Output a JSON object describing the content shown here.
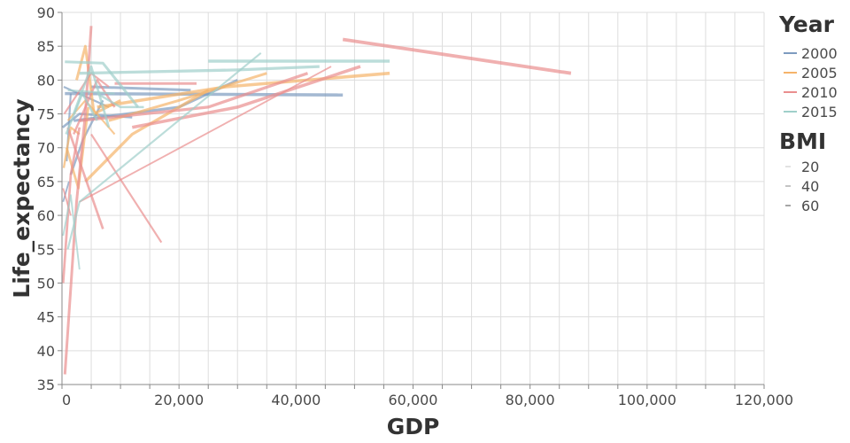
{
  "chart_data": {
    "type": "line",
    "title": "",
    "xlabel": "GDP",
    "ylabel": "Life_expectancy",
    "xlim": [
      0,
      120000
    ],
    "ylim": [
      35,
      90
    ],
    "x_ticks": [
      0,
      20000,
      40000,
      60000,
      80000,
      100000,
      120000
    ],
    "x_tick_labels": [
      "0",
      "20,000",
      "40,000",
      "60,000",
      "80,000",
      "100,000",
      "120,000"
    ],
    "y_ticks": [
      35,
      40,
      45,
      50,
      55,
      60,
      65,
      70,
      75,
      80,
      85,
      90
    ],
    "y_tick_labels": [
      "35",
      "40",
      "45",
      "50",
      "55",
      "60",
      "65",
      "70",
      "75",
      "80",
      "85",
      "90"
    ],
    "grid": true,
    "legend": {
      "placement": "right",
      "color_title": "Year",
      "color_entries": [
        {
          "label": "2000",
          "color": "#7d9bbf"
        },
        {
          "label": "2005",
          "color": "#f5b36a"
        },
        {
          "label": "2010",
          "color": "#ea8f8f"
        },
        {
          "label": "2015",
          "color": "#9fcfca"
        }
      ],
      "size_title": "BMI",
      "size_entries": [
        {
          "label": "20",
          "width": 0.5
        },
        {
          "label": "40",
          "width": 1
        },
        {
          "label": "60",
          "width": 1.5
        }
      ]
    },
    "series": [
      {
        "year": "2000",
        "color": "#7d9bbf",
        "segments": [
          {
            "bmi": 55,
            "points": [
              [
                500,
                78
              ],
              [
                48000,
                77.8
              ]
            ]
          },
          {
            "bmi": 45,
            "points": [
              [
                2000,
                74
              ],
              [
                20000,
                76
              ],
              [
                30000,
                80
              ]
            ]
          },
          {
            "bmi": 40,
            "points": [
              [
                100,
                73
              ],
              [
                3000,
                75
              ],
              [
                12000,
                74.5
              ]
            ]
          },
          {
            "bmi": 35,
            "points": [
              [
                1500,
                66
              ],
              [
                3500,
                71
              ],
              [
                7000,
                77
              ]
            ]
          },
          {
            "bmi": 30,
            "points": [
              [
                800,
                68
              ],
              [
                1500,
                78
              ]
            ]
          },
          {
            "bmi": 30,
            "points": [
              [
                300,
                79
              ],
              [
                8000,
                76
              ]
            ]
          },
          {
            "bmi": 25,
            "points": [
              [
                200,
                62
              ],
              [
                1200,
                65
              ]
            ]
          },
          {
            "bmi": 45,
            "points": [
              [
                5000,
                79
              ],
              [
                22000,
                78.5
              ]
            ]
          }
        ]
      },
      {
        "year": "2005",
        "color": "#f5b36a",
        "segments": [
          {
            "bmi": 55,
            "points": [
              [
                6000,
                76
              ],
              [
                28000,
                79
              ],
              [
                56000,
                81
              ]
            ]
          },
          {
            "bmi": 50,
            "points": [
              [
                4000,
                65
              ],
              [
                12000,
                72
              ],
              [
                25000,
                78.5
              ]
            ]
          },
          {
            "bmi": 45,
            "points": [
              [
                2500,
                80
              ],
              [
                4000,
                85
              ],
              [
                5500,
                75
              ],
              [
                10000,
                77
              ]
            ]
          },
          {
            "bmi": 40,
            "points": [
              [
                800,
                70
              ],
              [
                2800,
                64
              ],
              [
                4500,
                76
              ]
            ]
          },
          {
            "bmi": 45,
            "points": [
              [
                8000,
                74
              ],
              [
                20000,
                77
              ],
              [
                35000,
                81
              ]
            ]
          },
          {
            "bmi": 35,
            "points": [
              [
                300,
                67
              ],
              [
                1500,
                73
              ],
              [
                3000,
                72
              ]
            ]
          },
          {
            "bmi": 30,
            "points": [
              [
                1000,
                74
              ],
              [
                4000,
                77
              ],
              [
                9000,
                72
              ]
            ]
          }
        ]
      },
      {
        "year": "2010",
        "color": "#ea8f8f",
        "segments": [
          {
            "bmi": 60,
            "points": [
              [
                48000,
                86
              ],
              [
                87000,
                81
              ]
            ]
          },
          {
            "bmi": 55,
            "points": [
              [
                12000,
                73
              ],
              [
                30000,
                76
              ],
              [
                51000,
                82
              ]
            ]
          },
          {
            "bmi": 45,
            "points": [
              [
                500,
                36.5
              ],
              [
                2500,
                62
              ],
              [
                4000,
                75
              ],
              [
                5000,
                88
              ]
            ]
          },
          {
            "bmi": 40,
            "points": [
              [
                1000,
                73
              ],
              [
                7000,
                58
              ]
            ]
          },
          {
            "bmi": 40,
            "points": [
              [
                200,
                50
              ],
              [
                1500,
                66
              ],
              [
                3000,
                73
              ]
            ]
          },
          {
            "bmi": 35,
            "points": [
              [
                2000,
                72
              ],
              [
                6000,
                80
              ],
              [
                9000,
                76
              ]
            ]
          },
          {
            "bmi": 30,
            "points": [
              [
                5000,
                72
              ],
              [
                17000,
                56
              ]
            ]
          },
          {
            "bmi": 50,
            "points": [
              [
                3000,
                74
              ],
              [
                25000,
                76
              ],
              [
                42000,
                81
              ]
            ]
          },
          {
            "bmi": 45,
            "points": [
              [
                9000,
                79.5
              ],
              [
                23000,
                79.5
              ]
            ]
          },
          {
            "bmi": 25,
            "points": [
              [
                200,
                64
              ],
              [
                1500,
                60
              ]
            ]
          },
          {
            "bmi": 30,
            "points": [
              [
                400,
                75
              ],
              [
                5000,
                81
              ],
              [
                8000,
                79
              ]
            ]
          },
          {
            "bmi": 25,
            "points": [
              [
                3000,
                62
              ],
              [
                46000,
                82
              ]
            ]
          }
        ]
      },
      {
        "year": "2015",
        "color": "#9fcfca",
        "segments": [
          {
            "bmi": 55,
            "points": [
              [
                25000,
                82.8
              ],
              [
                56000,
                82.8
              ]
            ]
          },
          {
            "bmi": 50,
            "points": [
              [
                3000,
                81
              ],
              [
                30000,
                81.5
              ],
              [
                44000,
                82
              ]
            ]
          },
          {
            "bmi": 45,
            "points": [
              [
                500,
                82.7
              ],
              [
                7000,
                82.5
              ],
              [
                13000,
                76
              ]
            ]
          },
          {
            "bmi": 40,
            "points": [
              [
                2000,
                75
              ],
              [
                5000,
                82
              ],
              [
                8000,
                73
              ]
            ]
          },
          {
            "bmi": 35,
            "points": [
              [
                700,
                72
              ],
              [
                3500,
                78
              ],
              [
                6000,
                74
              ]
            ]
          },
          {
            "bmi": 30,
            "points": [
              [
                1000,
                55
              ],
              [
                3000,
                62
              ],
              [
                34000,
                84
              ]
            ]
          },
          {
            "bmi": 25,
            "points": [
              [
                200,
                57
              ],
              [
                1500,
                63
              ],
              [
                3000,
                52
              ]
            ]
          },
          {
            "bmi": 35,
            "points": [
              [
                6000,
                78
              ],
              [
                10000,
                76
              ],
              [
                14000,
                76
              ]
            ]
          },
          {
            "bmi": 30,
            "points": [
              [
                1000,
                78.5
              ],
              [
                9000,
                78
              ]
            ]
          }
        ]
      }
    ]
  }
}
